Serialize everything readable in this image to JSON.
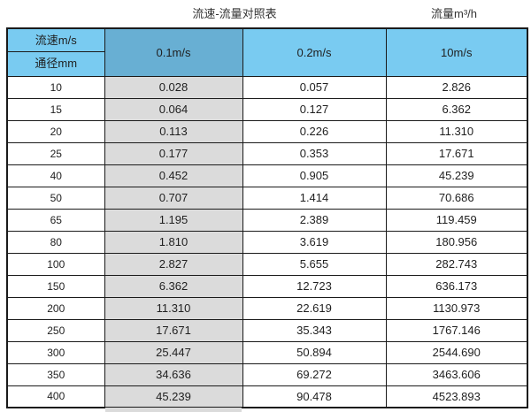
{
  "titles": {
    "main": "流速-流量对照表",
    "right": "流量m³/h"
  },
  "table": {
    "corner": {
      "top": "流速m/s",
      "bottom": "通径mm"
    },
    "flow_columns": [
      "0.1m/s",
      "0.2m/s",
      "10m/s"
    ],
    "rows": [
      {
        "diameter": "10",
        "values": [
          "0.028",
          "0.057",
          "2.826"
        ]
      },
      {
        "diameter": "15",
        "values": [
          "0.064",
          "0.127",
          "6.362"
        ]
      },
      {
        "diameter": "20",
        "values": [
          "0.113",
          "0.226",
          "11.310"
        ]
      },
      {
        "diameter": "25",
        "values": [
          "0.177",
          "0.353",
          "17.671"
        ]
      },
      {
        "diameter": "40",
        "values": [
          "0.452",
          "0.905",
          "45.239"
        ]
      },
      {
        "diameter": "50",
        "values": [
          "0.707",
          "1.414",
          "70.686"
        ]
      },
      {
        "diameter": "65",
        "values": [
          "1.195",
          "2.389",
          "119.459"
        ]
      },
      {
        "diameter": "80",
        "values": [
          "1.810",
          "3.619",
          "180.956"
        ]
      },
      {
        "diameter": "100",
        "values": [
          "2.827",
          "5.655",
          "282.743"
        ]
      },
      {
        "diameter": "150",
        "values": [
          "6.362",
          "12.723",
          "636.173"
        ]
      },
      {
        "diameter": "200",
        "values": [
          "11.310",
          "22.619",
          "1130.973"
        ]
      },
      {
        "diameter": "250",
        "values": [
          "17.671",
          "35.343",
          "1767.146"
        ]
      },
      {
        "diameter": "300",
        "values": [
          "25.447",
          "50.894",
          "2544.690"
        ]
      },
      {
        "diameter": "350",
        "values": [
          "34.636",
          "69.272",
          "3463.606"
        ]
      },
      {
        "diameter": "400",
        "values": [
          "45.239",
          "90.478",
          "4523.893"
        ]
      }
    ]
  },
  "colors": {
    "header-blue": "#79CBF1",
    "header-dark-blue": "#68AFD3",
    "gray-column": "#DBDBDB",
    "border-color": "#1a1a1a"
  }
}
